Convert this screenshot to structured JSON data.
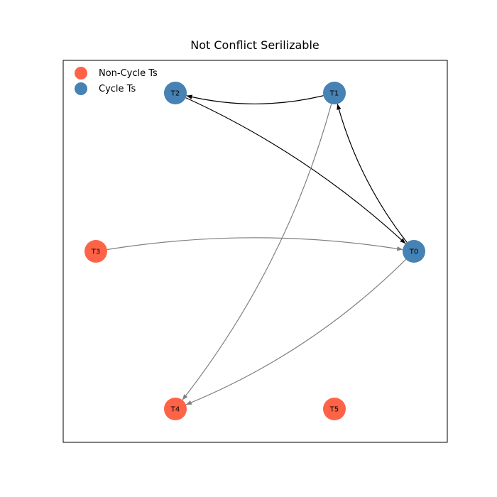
{
  "title": "Not Conflict Serilizable",
  "legend": [
    {
      "label": "Non-Cycle Ts",
      "color": "#ff6347"
    },
    {
      "label": "Cycle Ts",
      "color": "#4682b4"
    }
  ],
  "colors": {
    "cycle_node": "#4682b4",
    "non_cycle_node": "#ff6347",
    "cycle_edge": "#000000",
    "non_cycle_edge": "#808080"
  },
  "nodes": [
    {
      "id": "T0",
      "label": "T0",
      "in_cycle": true
    },
    {
      "id": "T1",
      "label": "T1",
      "in_cycle": true
    },
    {
      "id": "T2",
      "label": "T2",
      "in_cycle": true
    },
    {
      "id": "T3",
      "label": "T3",
      "in_cycle": false
    },
    {
      "id": "T4",
      "label": "T4",
      "in_cycle": false
    },
    {
      "id": "T5",
      "label": "T5",
      "in_cycle": false
    }
  ],
  "edges": [
    {
      "from": "T1",
      "to": "T2",
      "in_cycle": true
    },
    {
      "from": "T2",
      "to": "T0",
      "in_cycle": true
    },
    {
      "from": "T0",
      "to": "T1",
      "in_cycle": true
    },
    {
      "from": "T3",
      "to": "T0",
      "in_cycle": false
    },
    {
      "from": "T1",
      "to": "T4",
      "in_cycle": false
    },
    {
      "from": "T0",
      "to": "T4",
      "in_cycle": false
    }
  ]
}
